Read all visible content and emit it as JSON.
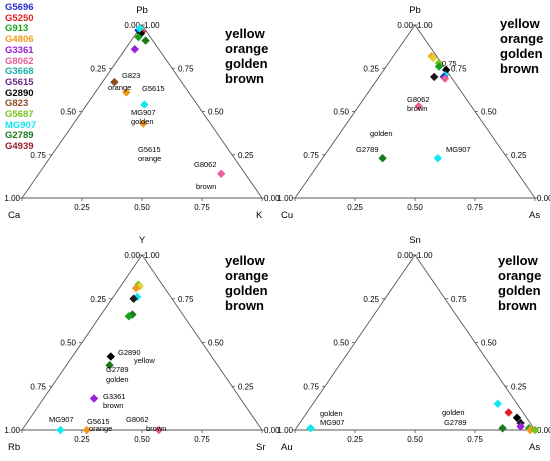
{
  "legend": [
    {
      "label": "G5696",
      "color": "#2a2ad0"
    },
    {
      "label": "G5250",
      "color": "#e02020"
    },
    {
      "label": "G913",
      "color": "#1aa01a"
    },
    {
      "label": "G4806",
      "color": "#f09a20"
    },
    {
      "label": "G3361",
      "color": "#9a20d8"
    },
    {
      "label": "G8062",
      "color": "#e8609a"
    },
    {
      "label": "G3668",
      "color": "#18b0a8"
    },
    {
      "label": "G5615",
      "color": "#6a2a8a"
    },
    {
      "label": "G2890",
      "color": "#000000"
    },
    {
      "label": "G823",
      "color": "#8a4a20"
    },
    {
      "label": "G5687",
      "color": "#7ac020"
    },
    {
      "label": "MG907",
      "color": "#10e8f0"
    },
    {
      "label": "G2789",
      "color": "#1a7a1a"
    },
    {
      "label": "G4939",
      "color": "#9a1a2a"
    }
  ],
  "color_words": [
    "yellow",
    "orange",
    "golden",
    "brown"
  ],
  "tick_labels": [
    "0.00",
    "0.25",
    "0.50",
    "0.75",
    "1.00"
  ],
  "chart_data": [
    {
      "type": "scatter",
      "subtype": "ternary",
      "vertices": {
        "top": "Pb",
        "left": "Ca",
        "right": "K"
      },
      "points": [
        {
          "top": 0.97,
          "left": 0.03,
          "right": 0.0,
          "color": "#2a2ad0"
        },
        {
          "top": 0.96,
          "left": 0.02,
          "right": 0.02,
          "color": "#e02020"
        },
        {
          "top": 0.95,
          "left": 0.03,
          "right": 0.02,
          "color": "#000000"
        },
        {
          "top": 0.93,
          "left": 0.05,
          "right": 0.02,
          "color": "#1aa01a"
        },
        {
          "top": 0.91,
          "left": 0.03,
          "right": 0.06,
          "color": "#1a7a1a"
        },
        {
          "top": 0.98,
          "left": 0.02,
          "right": 0.0,
          "color": "#10e8f0"
        },
        {
          "top": 0.86,
          "left": 0.1,
          "right": 0.04,
          "color": "#9a20d8"
        },
        {
          "top": 0.67,
          "left": 0.28,
          "right": 0.05,
          "color": "#8a4a20"
        },
        {
          "top": 0.61,
          "left": 0.26,
          "right": 0.13,
          "color": "#f09a20"
        },
        {
          "top": 0.54,
          "left": 0.22,
          "right": 0.24,
          "color": "#10e8f0"
        },
        {
          "top": 0.43,
          "left": 0.28,
          "right": 0.29,
          "color": "#f09a20"
        },
        {
          "top": 0.14,
          "left": 0.1,
          "right": 0.76,
          "color": "#e8609a"
        }
      ],
      "annotations": [
        "G823",
        "orange",
        "G5615",
        "MG907",
        "golden",
        "G5615",
        "orange",
        "G8062",
        "brown"
      ]
    },
    {
      "type": "scatter",
      "subtype": "ternary",
      "vertices": {
        "top": "Pb",
        "left": "Cu",
        "right": "As"
      },
      "points": [
        {
          "top": 0.82,
          "left": 0.02,
          "right": 0.16,
          "color": "#f09a20"
        },
        {
          "top": 0.81,
          "left": 0.02,
          "right": 0.17,
          "color": "#e8d030"
        },
        {
          "top": 0.78,
          "left": 0.01,
          "right": 0.21,
          "color": "#7ac020"
        },
        {
          "top": 0.76,
          "left": 0.02,
          "right": 0.22,
          "color": "#1aa01a"
        },
        {
          "top": 0.74,
          "left": 0.0,
          "right": 0.26,
          "color": "#000000"
        },
        {
          "top": 0.71,
          "left": 0.02,
          "right": 0.27,
          "color": "#10e8f0"
        },
        {
          "top": 0.7,
          "left": 0.03,
          "right": 0.27,
          "color": "#2a2ad0"
        },
        {
          "top": 0.69,
          "left": 0.03,
          "right": 0.28,
          "color": "#e8609a"
        },
        {
          "top": 0.7,
          "left": 0.07,
          "right": 0.23,
          "color": "#1a1a1a"
        },
        {
          "top": 0.53,
          "left": 0.22,
          "right": 0.25,
          "color": "#e8609a"
        },
        {
          "top": 0.23,
          "left": 0.52,
          "right": 0.25,
          "color": "#1a7a1a"
        },
        {
          "top": 0.23,
          "left": 0.29,
          "right": 0.48,
          "color": "#10e8f0"
        }
      ],
      "annotations": [
        "0.75",
        "G8062",
        "brown",
        "golden",
        "G2789",
        "MG907"
      ]
    },
    {
      "type": "scatter",
      "subtype": "ternary",
      "vertices": {
        "top": "Y",
        "left": "Rb",
        "right": "Sr"
      },
      "points": [
        {
          "top": 0.83,
          "left": 0.1,
          "right": 0.07,
          "color": "#7ac020"
        },
        {
          "top": 0.82,
          "left": 0.1,
          "right": 0.08,
          "color": "#e8d030"
        },
        {
          "top": 0.81,
          "left": 0.12,
          "right": 0.07,
          "color": "#f09a20"
        },
        {
          "top": 0.76,
          "left": 0.14,
          "right": 0.1,
          "color": "#10e8f0"
        },
        {
          "top": 0.75,
          "left": 0.16,
          "right": 0.09,
          "color": "#1a1a1a"
        },
        {
          "top": 0.66,
          "left": 0.21,
          "right": 0.13,
          "color": "#1a7a1a"
        },
        {
          "top": 0.65,
          "left": 0.23,
          "right": 0.12,
          "color": "#1aa01a"
        },
        {
          "top": 0.42,
          "left": 0.42,
          "right": 0.16,
          "color": "#000000"
        },
        {
          "top": 0.37,
          "left": 0.45,
          "right": 0.18,
          "color": "#1a7a1a"
        },
        {
          "top": 0.18,
          "left": 0.61,
          "right": 0.21,
          "color": "#9a20d8"
        },
        {
          "top": 0.0,
          "left": 0.84,
          "right": 0.16,
          "color": "#10e8f0"
        },
        {
          "top": 0.0,
          "left": 0.73,
          "right": 0.27,
          "color": "#f09a20"
        },
        {
          "top": 0.0,
          "left": 0.43,
          "right": 0.57,
          "color": "#e8609a"
        }
      ],
      "annotations": [
        "G2890",
        "yellow",
        "G2789",
        "golden",
        "G3361",
        "brown",
        "MG907",
        "G5615",
        "orange",
        "G8062",
        "brown"
      ]
    },
    {
      "type": "scatter",
      "subtype": "ternary",
      "vertices": {
        "top": "Sn",
        "left": "Au",
        "right": "As"
      },
      "points": [
        {
          "top": 0.01,
          "left": 0.93,
          "right": 0.06,
          "color": "#10e8f0"
        },
        {
          "top": 0.15,
          "left": 0.08,
          "right": 0.77,
          "color": "#10e8f0"
        },
        {
          "top": 0.1,
          "left": 0.06,
          "right": 0.84,
          "color": "#e02020"
        },
        {
          "top": 0.07,
          "left": 0.04,
          "right": 0.89,
          "color": "#000000"
        },
        {
          "top": 0.04,
          "left": 0.04,
          "right": 0.92,
          "color": "#1a1a1a"
        },
        {
          "top": 0.02,
          "left": 0.05,
          "right": 0.93,
          "color": "#9a20d8"
        },
        {
          "top": 0.01,
          "left": 0.02,
          "right": 0.97,
          "color": "#1aa01a"
        },
        {
          "top": 0.0,
          "left": 0.02,
          "right": 0.98,
          "color": "#f09a20"
        },
        {
          "top": 0.0,
          "left": 0.0,
          "right": 1.0,
          "color": "#7ac020"
        },
        {
          "top": 0.01,
          "left": 0.13,
          "right": 0.86,
          "color": "#1a7a1a"
        }
      ],
      "annotations": [
        "golden",
        "MG907",
        "golden",
        "G2789"
      ]
    }
  ]
}
